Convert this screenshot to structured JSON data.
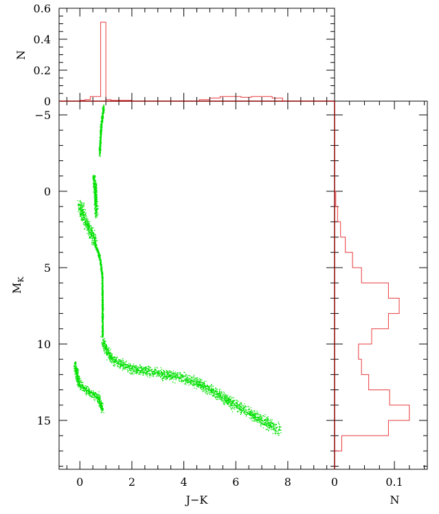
{
  "colors": {
    "points": "#00e000",
    "histogram": "#e8383b",
    "axes": "#000000"
  },
  "chart_data": [
    {
      "id": "main",
      "type": "scatter",
      "xlabel": "J−K",
      "ylabel": "M",
      "ylabel_sub": "K",
      "xlim": [
        -0.8,
        9.8
      ],
      "ylim": [
        18.2,
        -5.9
      ],
      "y_inverted": true,
      "xticks": [
        0,
        2,
        4,
        6,
        8
      ],
      "xtick_labels": [
        "0",
        "2",
        "4",
        "6",
        "8"
      ],
      "yticks": [
        -5,
        0,
        5,
        10,
        15
      ],
      "ytick_labels": [
        "−5",
        "0",
        "5",
        "10",
        "15"
      ],
      "grid": false,
      "series_segments": [
        {
          "points": [
            [
              0.75,
              -2.5
            ],
            [
              0.78,
              -3.5
            ],
            [
              0.82,
              -4.5
            ],
            [
              0.9,
              -5.5
            ]
          ],
          "spread": [
            0.05,
            0.35
          ]
        },
        {
          "points": [
            [
              0.52,
              -1.0
            ],
            [
              0.58,
              -0.2
            ],
            [
              0.6,
              0.8
            ],
            [
              0.62,
              1.5
            ]
          ],
          "spread": [
            0.09,
            0.5
          ]
        },
        {
          "points": [
            [
              0.0,
              0.8
            ],
            [
              0.15,
              1.8
            ],
            [
              0.3,
              2.3
            ],
            [
              0.45,
              2.8
            ],
            [
              0.55,
              3.3
            ]
          ],
          "spread": [
            0.18,
            0.45
          ]
        },
        {
          "points": [
            [
              0.55,
              3.3
            ],
            [
              0.75,
              4.3
            ],
            [
              0.85,
              5.5
            ],
            [
              0.86,
              7.5
            ],
            [
              0.86,
              9.5
            ]
          ],
          "spread": [
            0.04,
            0.25
          ]
        },
        {
          "points": [
            [
              0.86,
              9.8
            ],
            [
              1.2,
              11.0
            ],
            [
              2.0,
              11.6
            ],
            [
              3.0,
              11.9
            ],
            [
              4.0,
              12.2
            ],
            [
              4.6,
              12.6
            ]
          ],
          "spread": [
            0.1,
            0.5
          ]
        },
        {
          "points": [
            [
              4.6,
              12.6
            ],
            [
              5.5,
              13.5
            ],
            [
              6.5,
              14.5
            ],
            [
              7.7,
              15.6
            ]
          ],
          "spread": [
            0.1,
            0.55
          ]
        },
        {
          "points": [
            [
              -0.2,
              11.3
            ],
            [
              -0.05,
              12.6
            ],
            [
              0.3,
              13.1
            ],
            [
              0.7,
              13.5
            ],
            [
              0.85,
              14.3
            ]
          ],
          "spread": [
            0.1,
            0.4
          ]
        }
      ]
    },
    {
      "id": "top-histogram",
      "type": "histogram",
      "ylabel": "N",
      "xlim": [
        -0.8,
        9.8
      ],
      "ylim": [
        0,
        0.6
      ],
      "yticks": [
        0,
        0.2,
        0.4,
        0.6
      ],
      "ytick_labels": [
        "0",
        "0.2",
        "0.4",
        "0.6"
      ],
      "bin_edges": [
        -0.8,
        0.0,
        0.2,
        0.4,
        0.6,
        0.8,
        1.0,
        1.2,
        2.0,
        4.6,
        5.0,
        5.4,
        5.8,
        6.2,
        6.6,
        7.0,
        7.4,
        7.8,
        9.8
      ],
      "counts": [
        0.0,
        0.005,
        0.01,
        0.03,
        0.03,
        0.51,
        0.01,
        0.005,
        0.0,
        0.01,
        0.02,
        0.03,
        0.03,
        0.025,
        0.03,
        0.03,
        0.02,
        0.0
      ]
    },
    {
      "id": "right-histogram",
      "type": "histogram",
      "orientation": "horizontal",
      "xlabel": "N",
      "xlim": [
        0,
        0.155
      ],
      "xticks": [
        0,
        0.1
      ],
      "xtick_labels": [
        "0",
        "0.1"
      ],
      "ylim": [
        18.2,
        -5.9
      ],
      "bin_edges": [
        -5.9,
        0,
        1,
        2,
        3,
        4,
        5,
        6,
        7,
        8,
        9,
        10,
        11,
        12,
        13,
        14,
        15,
        16,
        17,
        18.2
      ],
      "counts": [
        0.0,
        0.002,
        0.005,
        0.01,
        0.018,
        0.03,
        0.045,
        0.09,
        0.108,
        0.09,
        0.062,
        0.04,
        0.045,
        0.057,
        0.092,
        0.125,
        0.09,
        0.012,
        0.0
      ]
    }
  ]
}
